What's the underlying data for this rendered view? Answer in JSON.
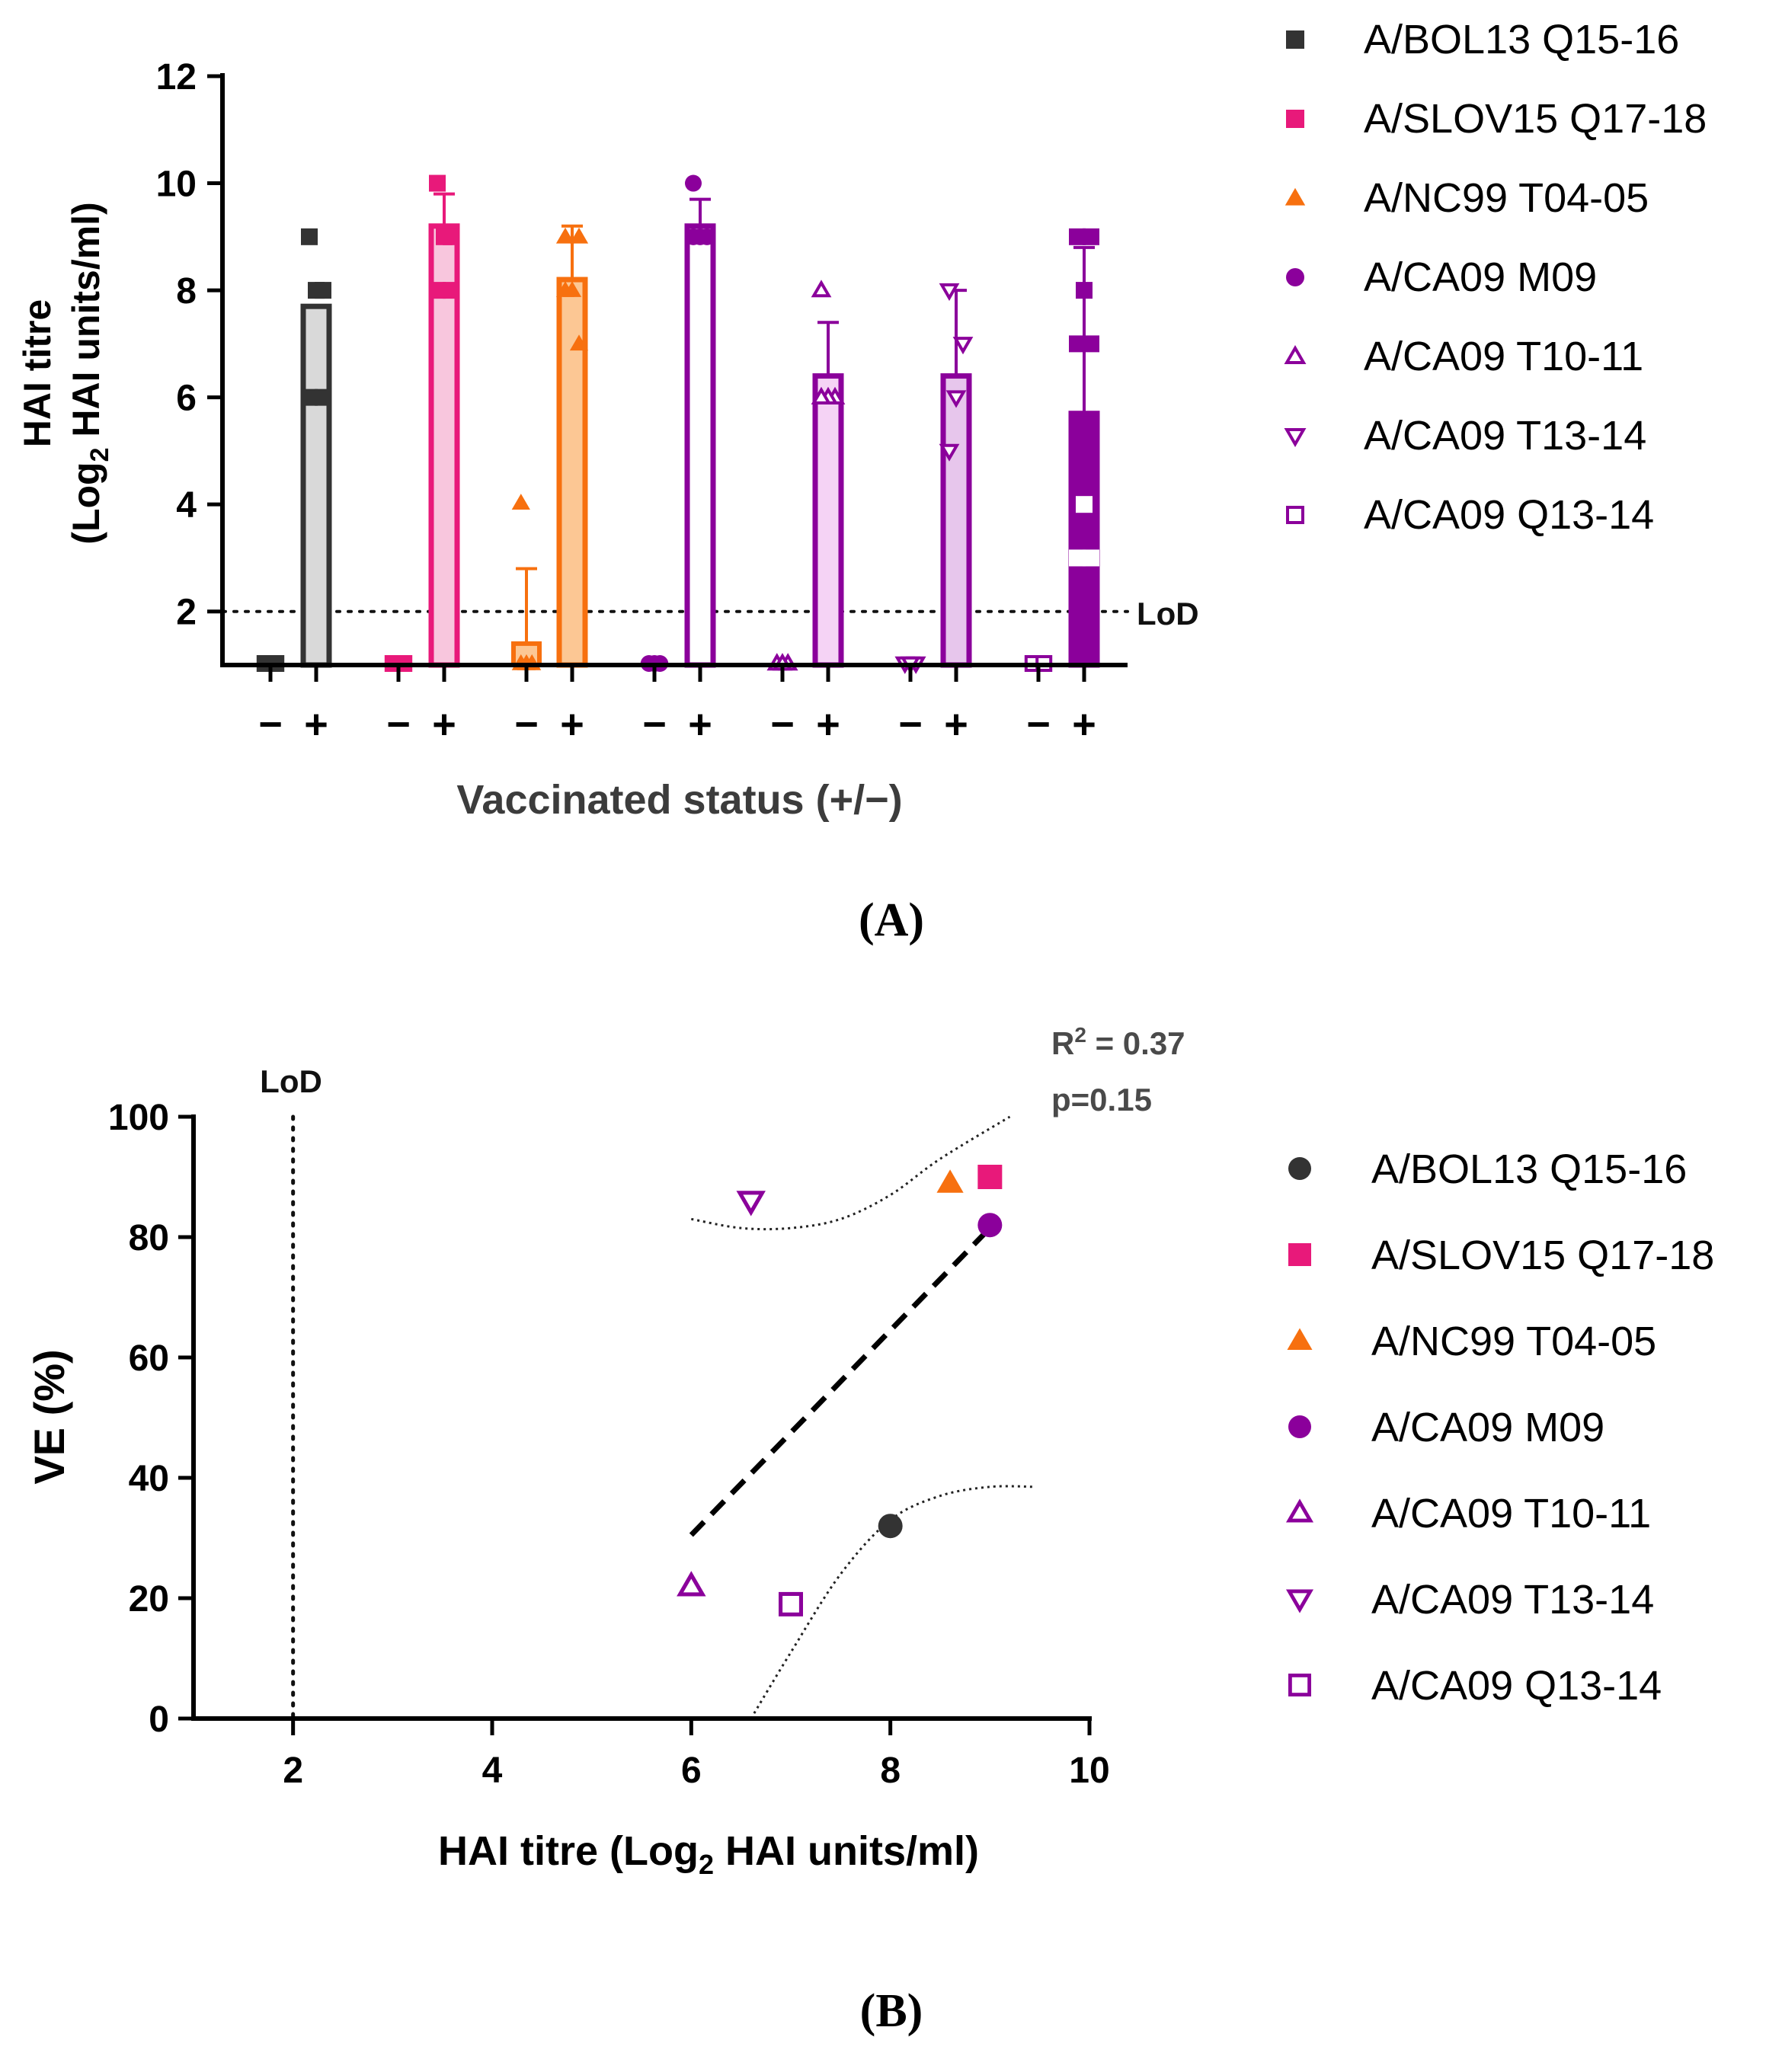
{
  "chart_data": [
    {
      "type": "bar",
      "panel_label": "(A)",
      "ylabel_line1": "HAI titre",
      "ylabel_line2_pre": "(Log",
      "ylabel_line2_sub": "2",
      "ylabel_line2_post": " HAI units/ml)",
      "xlabel": "Vaccinated status (+/−)",
      "ylim": [
        1,
        12
      ],
      "yticks": [
        2,
        4,
        6,
        8,
        10,
        12
      ],
      "lod": {
        "value": 2,
        "label": "LoD"
      },
      "categories": [
        "−",
        "+",
        "−",
        "+",
        "−",
        "+",
        "−",
        "+",
        "−",
        "+",
        "−",
        "+",
        "−",
        "+"
      ],
      "series": [
        {
          "name": "A/BOL13 Q15-16",
          "color": "#333333",
          "marker": "square-filled",
          "fill": "#d9d9d9",
          "neg": 1.0,
          "pos": 7.7,
          "pos_err": 0.0,
          "neg_err": 0,
          "neg_points": [
            1,
            1,
            1
          ],
          "pos_points": [
            9,
            8,
            8,
            6,
            6
          ]
        },
        {
          "name": "A/SLOV15 Q17-18",
          "color": "#e8197a",
          "marker": "square-filled",
          "fill": "#f8c6dd",
          "neg": 1.0,
          "pos": 9.2,
          "pos_err": 0.6,
          "neg_err": 0,
          "neg_points": [
            1,
            1,
            1
          ],
          "pos_points": [
            10,
            9,
            9,
            8,
            8
          ]
        },
        {
          "name": "A/NC99 T04-05",
          "color": "#f7700f",
          "marker": "triangle-up-filled",
          "fill": "#fcc794",
          "neg": 1.4,
          "pos": 8.2,
          "pos_err": 1.0,
          "neg_err": 1.4,
          "neg_points": [
            4,
            1,
            1,
            1
          ],
          "pos_points": [
            9,
            9,
            8,
            8,
            7
          ]
        },
        {
          "name": "A/CA09 M09",
          "color": "#8b009b",
          "marker": "circle-filled",
          "fill": "#ffffff",
          "neg": 1.0,
          "pos": 9.2,
          "pos_err": 0.5,
          "neg_err": 0,
          "neg_points": [
            1,
            1,
            1
          ],
          "pos_points": [
            10,
            9,
            9,
            9
          ]
        },
        {
          "name": "A/CA09 T10-11",
          "color": "#8b009b",
          "marker": "triangle-up-open",
          "fill": "#f5d3f5",
          "neg": 1.0,
          "pos": 6.4,
          "pos_err": 1.0,
          "neg_err": 0,
          "neg_points": [
            1,
            1,
            1
          ],
          "pos_points": [
            8,
            6,
            6,
            6
          ]
        },
        {
          "name": "A/CA09 T13-14",
          "color": "#8b009b",
          "marker": "triangle-down-open",
          "fill": "#e7c6ec",
          "neg": 1.0,
          "pos": 6.4,
          "pos_err": 1.6,
          "neg_err": 0,
          "neg_points": [
            1,
            1,
            1
          ],
          "pos_points": [
            8,
            7,
            6,
            5
          ]
        },
        {
          "name": "A/CA09 Q13-14",
          "color": "#8b009b",
          "marker": "square-open",
          "fill": "#8b009b",
          "neg": 1.0,
          "pos": 5.7,
          "pos_err": 3.1,
          "neg_err": 0,
          "neg_points": [
            1,
            1
          ],
          "pos_points": [
            9,
            9,
            8,
            7,
            7,
            4,
            3,
            3
          ]
        }
      ],
      "legend": [
        "A/BOL13 Q15-16",
        "A/SLOV15 Q17-18",
        "A/NC99 T04-05",
        "A/CA09 M09",
        "A/CA09 T10-11",
        "A/CA09 T13-14",
        "A/CA09 Q13-14"
      ]
    },
    {
      "type": "scatter",
      "panel_label": "(B)",
      "ylabel": "VE (%)",
      "xlabel_pre": "HAI titre (Log",
      "xlabel_sub": "2",
      "xlabel_post": " HAI units/ml)",
      "xlim": [
        1,
        10
      ],
      "ylim": [
        0,
        100
      ],
      "xticks": [
        2,
        4,
        6,
        8,
        10
      ],
      "yticks": [
        0,
        20,
        40,
        60,
        80,
        100
      ],
      "lod": {
        "value": 2,
        "label": "LoD"
      },
      "stats_r2_pre": "R",
      "stats_r2_sup": "2",
      "stats_r2_post": " = 0.37",
      "stats_p": "p=0.15",
      "points": [
        {
          "name": "A/BOL13 Q15-16",
          "x": 8.0,
          "y": 32,
          "color": "#333333",
          "marker": "circle-filled"
        },
        {
          "name": "A/SLOV15 Q17-18",
          "x": 9.0,
          "y": 90,
          "color": "#e8197a",
          "marker": "square-filled"
        },
        {
          "name": "A/NC99 T04-05",
          "x": 8.6,
          "y": 89,
          "color": "#f7700f",
          "marker": "triangle-up-filled"
        },
        {
          "name": "A/CA09 M09",
          "x": 9.0,
          "y": 82,
          "color": "#8b009b",
          "marker": "circle-filled"
        },
        {
          "name": "A/CA09 T10-11",
          "x": 6.0,
          "y": 22,
          "color": "#8b009b",
          "marker": "triangle-up-open"
        },
        {
          "name": "A/CA09 T13-14",
          "x": 6.6,
          "y": 86,
          "color": "#8b009b",
          "marker": "triangle-down-open"
        },
        {
          "name": "A/CA09 Q13-14",
          "x": 7.0,
          "y": 19,
          "color": "#8b009b",
          "marker": "square-open"
        }
      ],
      "regression": {
        "x": [
          6.0,
          9.0
        ],
        "y": [
          30.5,
          81.5
        ]
      },
      "ci_upper": {
        "x": [
          6.0,
          6.5,
          7.0,
          7.5,
          8.0,
          8.5,
          9.2
        ],
        "y": [
          83,
          81.5,
          81.5,
          83,
          87,
          93,
          100
        ]
      },
      "ci_lower": {
        "x": [
          6.6,
          7.0,
          7.5,
          8.0,
          8.5,
          9.0,
          9.45
        ],
        "y": [
          0,
          11,
          24,
          33,
          37,
          38.5,
          38.5
        ]
      },
      "legend": [
        "A/BOL13 Q15-16",
        "A/SLOV15 Q17-18",
        "A/NC99 T04-05",
        "A/CA09 M09",
        "A/CA09 T10-11",
        "A/CA09 T13-14",
        "A/CA09 Q13-14"
      ]
    }
  ]
}
